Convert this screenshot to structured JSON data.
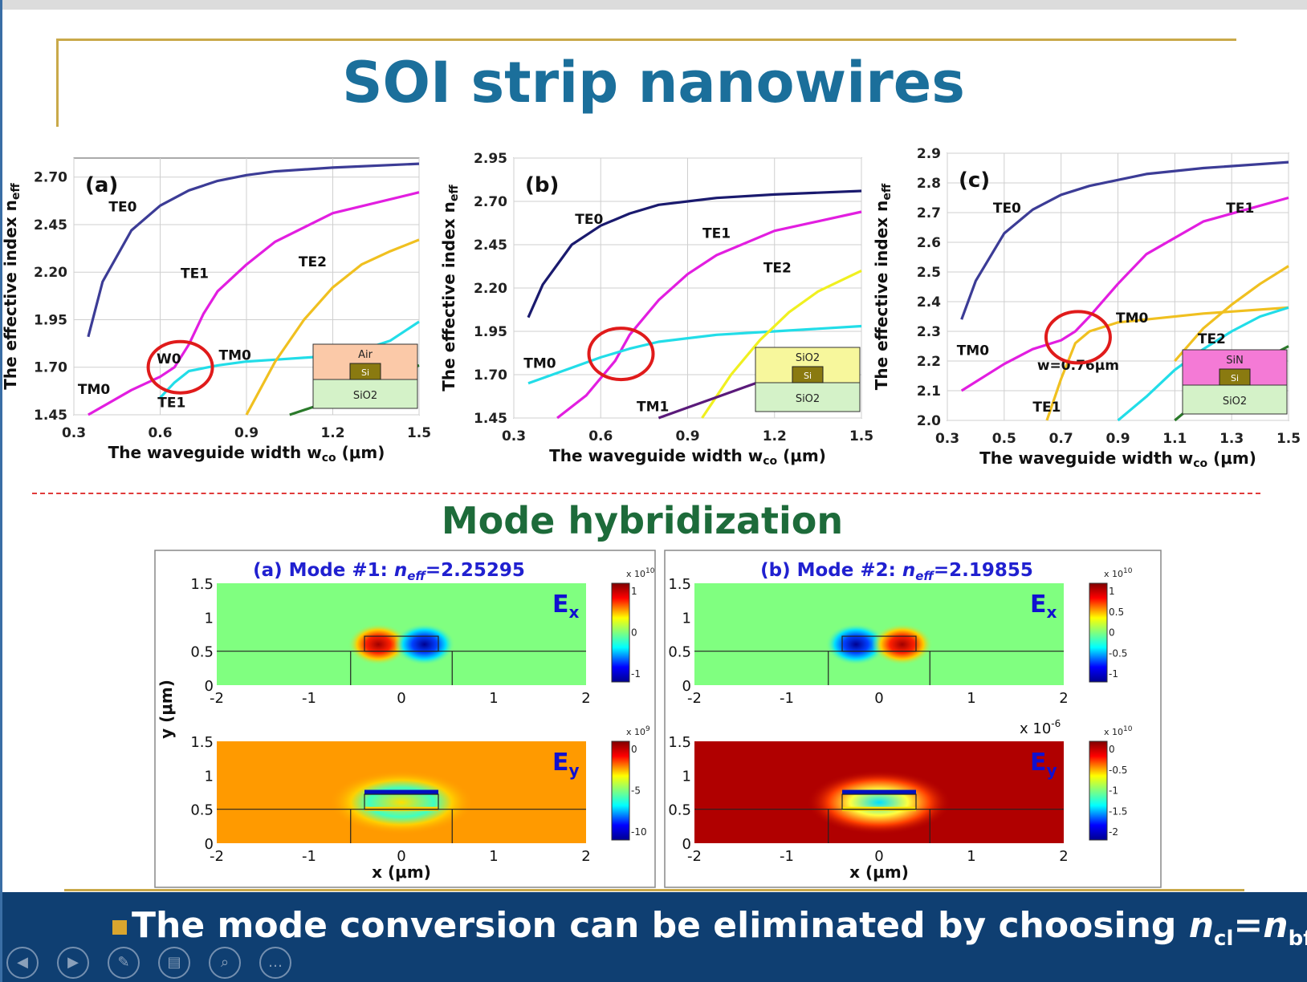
{
  "slide": {
    "title": "SOI strip nanowires",
    "section_title": "Mode hybridization",
    "banner_text": "The mode conversion can be eliminated by choosing ",
    "banner_formula": {
      "n1": "n",
      "s1": "cl",
      "eq": "=",
      "n2": "n",
      "s2": "bf"
    }
  },
  "navbar": {
    "icons": [
      "back-icon",
      "forward-icon",
      "pen-icon",
      "slides-icon",
      "zoom-icon",
      "more-icon"
    ],
    "glyphs": [
      "◀",
      "▶",
      "✎",
      "▤",
      "⌕",
      "…"
    ]
  },
  "colors": {
    "title": "#1b6f9b",
    "section": "#1d6b3a",
    "banner": "#0f3f72",
    "divider": "#e03a3a",
    "accent": "#c9a94a",
    "highlight_circle": "#e01b1b"
  },
  "chart_data": [
    {
      "id": "a",
      "type": "line",
      "panel_label": "(a)",
      "xlabel": "The waveguide width wₙₒ (μm)",
      "xlabel_main": "The waveguide width w",
      "xlabel_sub": "co",
      "xlabel_unit": " (μm)",
      "ylabel_main": "The effective index n",
      "ylabel_sub": "eff",
      "xlim": [
        0.3,
        1.5
      ],
      "ylim": [
        1.45,
        2.8
      ],
      "xticks": [
        "0.3",
        "0.6",
        "0.9",
        "1.2",
        "1.5"
      ],
      "yticks": [
        "1.45",
        "1.70",
        "1.95",
        "2.20",
        "2.45",
        "2.70"
      ],
      "series": [
        {
          "name": "TE0",
          "color": "#3c3c96",
          "points": [
            [
              0.35,
              1.86
            ],
            [
              0.4,
              2.15
            ],
            [
              0.5,
              2.42
            ],
            [
              0.6,
              2.55
            ],
            [
              0.7,
              2.63
            ],
            [
              0.8,
              2.68
            ],
            [
              0.9,
              2.71
            ],
            [
              1.0,
              2.73
            ],
            [
              1.2,
              2.75
            ],
            [
              1.5,
              2.77
            ]
          ]
        },
        {
          "name": "TE1",
          "color": "#e21ee0",
          "points": [
            [
              0.35,
              1.45
            ],
            [
              0.5,
              1.58
            ],
            [
              0.6,
              1.65
            ],
            [
              0.65,
              1.7
            ],
            [
              0.7,
              1.82
            ],
            [
              0.75,
              1.98
            ],
            [
              0.8,
              2.1
            ],
            [
              0.9,
              2.24
            ],
            [
              1.0,
              2.36
            ],
            [
              1.2,
              2.51
            ],
            [
              1.5,
              2.62
            ]
          ]
        },
        {
          "name": "TM0",
          "color": "#22dde8",
          "points": [
            [
              0.6,
              1.54
            ],
            [
              0.65,
              1.62
            ],
            [
              0.7,
              1.68
            ],
            [
              0.8,
              1.71
            ],
            [
              0.9,
              1.73
            ],
            [
              1.0,
              1.74
            ],
            [
              1.1,
              1.75
            ],
            [
              1.2,
              1.76
            ],
            [
              1.3,
              1.79
            ],
            [
              1.4,
              1.84
            ],
            [
              1.5,
              1.94
            ]
          ]
        },
        {
          "name": "TE2",
          "color": "#f0c020",
          "points": [
            [
              0.9,
              1.45
            ],
            [
              1.0,
              1.73
            ],
            [
              1.1,
              1.95
            ],
            [
              1.2,
              2.12
            ],
            [
              1.3,
              2.24
            ],
            [
              1.4,
              2.31
            ],
            [
              1.5,
              2.37
            ]
          ]
        },
        {
          "name": "",
          "color": "#2a7a2a",
          "points": [
            [
              1.05,
              1.45
            ],
            [
              1.15,
              1.5
            ],
            [
              1.25,
              1.56
            ],
            [
              1.35,
              1.62
            ],
            [
              1.45,
              1.68
            ],
            [
              1.5,
              1.71
            ]
          ]
        }
      ],
      "labels": [
        {
          "text": "TE0",
          "x": 0.47,
          "y": 2.52
        },
        {
          "text": "TE1",
          "x": 0.72,
          "y": 2.17
        },
        {
          "text": "TE2",
          "x": 1.13,
          "y": 2.23
        },
        {
          "text": "TM0",
          "x": 0.86,
          "y": 1.74
        },
        {
          "text": "TM0",
          "x": 0.37,
          "y": 1.56
        },
        {
          "text": "TE1",
          "x": 0.64,
          "y": 1.49
        },
        {
          "text": "W0",
          "x": 0.63,
          "y": 1.72
        }
      ],
      "circle": {
        "x": 0.67,
        "y": 1.7
      },
      "inset": {
        "top": "Air",
        "core": "Si",
        "bottom": "SiO2",
        "top_color": "#fbc9a8",
        "bottom_color": "#d4f2c8"
      }
    },
    {
      "id": "b",
      "type": "line",
      "panel_label": "(b)",
      "xlabel_main": "The waveguide width w",
      "xlabel_sub": "co",
      "xlabel_unit": " (μm)",
      "ylabel_main": "The effective index n",
      "ylabel_sub": "eff",
      "xlim": [
        0.3,
        1.5
      ],
      "ylim": [
        1.45,
        2.95
      ],
      "xticks": [
        "0.3",
        "0.6",
        "0.9",
        "1.2",
        "1.5"
      ],
      "yticks": [
        "1.45",
        "1.70",
        "1.95",
        "2.20",
        "2.45",
        "2.70",
        "2.95"
      ],
      "series": [
        {
          "name": "TE0",
          "color": "#1a1a6e",
          "points": [
            [
              0.35,
              2.03
            ],
            [
              0.4,
              2.22
            ],
            [
              0.5,
              2.45
            ],
            [
              0.6,
              2.56
            ],
            [
              0.7,
              2.63
            ],
            [
              0.8,
              2.68
            ],
            [
              0.9,
              2.7
            ],
            [
              1.0,
              2.72
            ],
            [
              1.2,
              2.74
            ],
            [
              1.5,
              2.76
            ]
          ]
        },
        {
          "name": "TE1",
          "color": "#e21ee0",
          "points": [
            [
              0.45,
              1.45
            ],
            [
              0.55,
              1.58
            ],
            [
              0.65,
              1.78
            ],
            [
              0.7,
              1.93
            ],
            [
              0.8,
              2.13
            ],
            [
              0.9,
              2.28
            ],
            [
              1.0,
              2.39
            ],
            [
              1.2,
              2.53
            ],
            [
              1.5,
              2.64
            ]
          ]
        },
        {
          "name": "TM0",
          "color": "#22dde8",
          "points": [
            [
              0.35,
              1.65
            ],
            [
              0.5,
              1.74
            ],
            [
              0.6,
              1.8
            ],
            [
              0.7,
              1.85
            ],
            [
              0.8,
              1.89
            ],
            [
              0.9,
              1.91
            ],
            [
              1.0,
              1.93
            ],
            [
              1.2,
              1.95
            ],
            [
              1.5,
              1.98
            ]
          ]
        },
        {
          "name": "TE2",
          "color": "#f0f020",
          "points": [
            [
              0.95,
              1.45
            ],
            [
              1.05,
              1.7
            ],
            [
              1.15,
              1.9
            ],
            [
              1.25,
              2.06
            ],
            [
              1.35,
              2.18
            ],
            [
              1.5,
              2.3
            ]
          ]
        },
        {
          "name": "TM1",
          "color": "#5a1a7a",
          "points": [
            [
              0.8,
              1.45
            ],
            [
              0.9,
              1.51
            ],
            [
              1.0,
              1.57
            ],
            [
              1.1,
              1.63
            ],
            [
              1.2,
              1.69
            ],
            [
              1.3,
              1.74
            ]
          ]
        }
      ],
      "labels": [
        {
          "text": "TE0",
          "x": 0.56,
          "y": 2.57
        },
        {
          "text": "TE1",
          "x": 1.0,
          "y": 2.49
        },
        {
          "text": "TE2",
          "x": 1.21,
          "y": 2.29
        },
        {
          "text": "TM0",
          "x": 0.39,
          "y": 1.74
        },
        {
          "text": "TM1",
          "x": 0.78,
          "y": 1.49
        }
      ],
      "circle": {
        "x": 0.67,
        "y": 1.82
      },
      "inset": {
        "top": "SiO2",
        "core": "Si",
        "bottom": "SiO2",
        "top_color": "#f7f79c",
        "bottom_color": "#d4f2c8"
      }
    },
    {
      "id": "c",
      "type": "line",
      "panel_label": "(c)",
      "xlabel_main": "The waveguide width w",
      "xlabel_sub": "co",
      "xlabel_unit": " (μm)",
      "ylabel_main": "The effective index n",
      "ylabel_sub": "eff",
      "xlim": [
        0.3,
        1.5
      ],
      "ylim": [
        2.0,
        2.9
      ],
      "xticks": [
        "0.3",
        "0.5",
        "0.7",
        "0.9",
        "1.1",
        "1.3",
        "1.5"
      ],
      "yticks": [
        "2.0",
        "2.1",
        "2.2",
        "2.3",
        "2.4",
        "2.5",
        "2.6",
        "2.7",
        "2.8",
        "2.9"
      ],
      "series": [
        {
          "name": "TE0",
          "color": "#3c3c96",
          "points": [
            [
              0.35,
              2.34
            ],
            [
              0.4,
              2.47
            ],
            [
              0.5,
              2.63
            ],
            [
              0.6,
              2.71
            ],
            [
              0.7,
              2.76
            ],
            [
              0.8,
              2.79
            ],
            [
              0.9,
              2.81
            ],
            [
              1.0,
              2.83
            ],
            [
              1.2,
              2.85
            ],
            [
              1.5,
              2.87
            ]
          ]
        },
        {
          "name": "TE1",
          "color": "#e21ee0",
          "points": [
            [
              0.35,
              2.1
            ],
            [
              0.5,
              2.19
            ],
            [
              0.6,
              2.24
            ],
            [
              0.7,
              2.27
            ],
            [
              0.75,
              2.3
            ],
            [
              0.8,
              2.35
            ],
            [
              0.9,
              2.46
            ],
            [
              1.0,
              2.56
            ],
            [
              1.2,
              2.67
            ],
            [
              1.5,
              2.75
            ]
          ]
        },
        {
          "name": "TM0",
          "color": "#f0c020",
          "points": [
            [
              0.65,
              2.0
            ],
            [
              0.7,
              2.14
            ],
            [
              0.75,
              2.26
            ],
            [
              0.8,
              2.3
            ],
            [
              0.9,
              2.33
            ],
            [
              1.0,
              2.34
            ],
            [
              1.2,
              2.36
            ],
            [
              1.5,
              2.38
            ]
          ]
        },
        {
          "name": "TE2",
          "color": "#22dde8",
          "points": [
            [
              0.9,
              2.0
            ],
            [
              1.0,
              2.08
            ],
            [
              1.1,
              2.17
            ],
            [
              1.2,
              2.24
            ],
            [
              1.3,
              2.3
            ],
            [
              1.4,
              2.35
            ],
            [
              1.5,
              2.38
            ]
          ]
        },
        {
          "name": "",
          "color": "#f0c020",
          "points": [
            [
              1.1,
              2.2
            ],
            [
              1.2,
              2.31
            ],
            [
              1.3,
              2.39
            ],
            [
              1.4,
              2.46
            ],
            [
              1.5,
              2.52
            ]
          ]
        },
        {
          "name": "",
          "color": "#2a7a2a",
          "points": [
            [
              1.1,
              2.0
            ],
            [
              1.2,
              2.08
            ],
            [
              1.3,
              2.14
            ],
            [
              1.4,
              2.2
            ],
            [
              1.5,
              2.25
            ]
          ]
        }
      ],
      "labels": [
        {
          "text": "TE0",
          "x": 0.51,
          "y": 2.7
        },
        {
          "text": "TE1",
          "x": 1.33,
          "y": 2.7
        },
        {
          "text": "TM0",
          "x": 0.95,
          "y": 2.33
        },
        {
          "text": "TM0",
          "x": 0.39,
          "y": 2.22
        },
        {
          "text": "TE2",
          "x": 1.23,
          "y": 2.26
        },
        {
          "text": "TE1",
          "x": 0.65,
          "y": 2.03
        },
        {
          "text": "w=0.76μm",
          "x": 0.76,
          "y": 2.17
        }
      ],
      "circle": {
        "x": 0.76,
        "y": 2.28
      },
      "inset": {
        "top": "SiN",
        "core": "Si",
        "bottom": "SiO2",
        "top_color": "#f47ad6",
        "bottom_color": "#d4f2c8"
      }
    },
    {
      "id": "modes",
      "type": "heatmap",
      "panels": [
        {
          "title_pre": "(a) Mode #1: ",
          "title_n": "n",
          "title_sub": "eff",
          "title_val": "=2.25295",
          "ex": {
            "label": "E",
            "sub": "x",
            "cbar_exp": "x 10",
            "cbar_pow": "10",
            "cbar_ticks": [
              "1",
              "0",
              "-1"
            ]
          },
          "ey": {
            "label": "E",
            "sub": "y",
            "cbar_exp": "x 10",
            "cbar_pow": "9",
            "cbar_ticks": [
              "0",
              "-5",
              "-10"
            ]
          }
        },
        {
          "title_pre": "(b) Mode #2: ",
          "title_n": "n",
          "title_sub": "eff",
          "title_val": "=2.19855",
          "ex": {
            "label": "E",
            "sub": "x",
            "cbar_exp": "x 10",
            "cbar_pow": "10",
            "cbar_ticks": [
              "1",
              "0.5",
              "0",
              "-0.5",
              "-1"
            ]
          },
          "ey": {
            "label": "E",
            "sub": "y",
            "cbar_exp": "x 10",
            "cbar_pow": "10",
            "cbar_ticks": [
              "0",
              "-0.5",
              "-1",
              "-1.5",
              "-2"
            ],
            "axis_exp": "x 10",
            "axis_pow": "-6"
          }
        }
      ],
      "xlim": [
        -2,
        2
      ],
      "ylim": [
        0,
        1.5
      ],
      "xticks": [
        "-2",
        "-1",
        "0",
        "1",
        "2"
      ],
      "yticks": [
        "0",
        "0.5",
        "1",
        "1.5"
      ],
      "xlabel": "x (μm)",
      "ylabel": "y (μm)"
    }
  ]
}
